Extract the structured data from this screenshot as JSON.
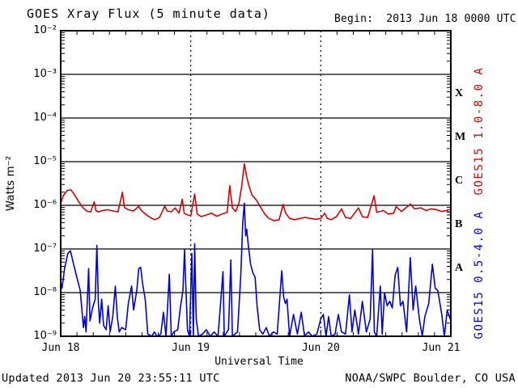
{
  "header": {
    "title": "GOES Xray Flux (5 minute data)",
    "begin_label": "Begin:  2013 Jun 18 0000 UTC"
  },
  "footer": {
    "updated": "Updated 2013 Jun 20 23:55:11 UTC",
    "source": "NOAA/SWPC Boulder, CO USA"
  },
  "colors": {
    "background": "#ffffff",
    "axis": "#000000",
    "long_channel_red": "#dd0000",
    "short_channel_blue": "#0000dd"
  },
  "chart_data": {
    "type": "line",
    "title": "GOES Xray Flux (5 minute data)",
    "xlabel": "Universal Time",
    "ylabel_display": "Watts m⁻²",
    "x_axis": {
      "tick_labels": [
        "Jun 18",
        "Jun 19",
        "Jun 20",
        "Jun 21"
      ],
      "range_days": [
        0,
        3
      ],
      "day_gridlines": [
        1,
        2
      ],
      "minor_ticks_per_day": 8
    },
    "y_axis": {
      "scale": "log",
      "tick_labels": [
        "10⁻²",
        "10⁻³",
        "10⁻⁴",
        "10⁻⁵",
        "10⁻⁶",
        "10⁻⁷",
        "10⁻⁸",
        "10⁻⁹"
      ],
      "tick_exponents": [
        -2,
        -3,
        -4,
        -5,
        -6,
        -7,
        -8,
        -9
      ],
      "gridline_exponents": [
        -3,
        -4,
        -5,
        -6,
        -7,
        -8
      ],
      "range_exponents": [
        -9,
        -2
      ]
    },
    "flux_classes": [
      {
        "label": "X",
        "log_center": -3.5
      },
      {
        "label": "M",
        "log_center": -4.5
      },
      {
        "label": "C",
        "log_center": -5.5
      },
      {
        "label": "B",
        "log_center": -6.5
      },
      {
        "label": "A",
        "log_center": -7.5
      }
    ],
    "grid": {
      "horizontal": "solid",
      "day_vertical": "dashed"
    },
    "legend_position": "right-rotated",
    "series": [
      {
        "name": "GOES15 1.0-8.0 A",
        "satellite": "GOES15",
        "wavelength": "1.0-8.0 A",
        "color": "#dd0000",
        "points": [
          [
            0.0,
            -5.95
          ],
          [
            0.02,
            -5.78
          ],
          [
            0.05,
            -5.66
          ],
          [
            0.08,
            -5.65
          ],
          [
            0.11,
            -5.78
          ],
          [
            0.14,
            -5.92
          ],
          [
            0.17,
            -6.05
          ],
          [
            0.2,
            -6.13
          ],
          [
            0.23,
            -6.15
          ],
          [
            0.258,
            -5.92
          ],
          [
            0.27,
            -6.12
          ],
          [
            0.29,
            -6.15
          ],
          [
            0.32,
            -6.12
          ],
          [
            0.36,
            -6.1
          ],
          [
            0.4,
            -6.13
          ],
          [
            0.44,
            -6.15
          ],
          [
            0.475,
            -5.7
          ],
          [
            0.49,
            -6.05
          ],
          [
            0.52,
            -6.1
          ],
          [
            0.56,
            -6.13
          ],
          [
            0.6,
            -6.02
          ],
          [
            0.62,
            -6.12
          ],
          [
            0.66,
            -6.22
          ],
          [
            0.7,
            -6.3
          ],
          [
            0.725,
            -6.33
          ],
          [
            0.76,
            -6.28
          ],
          [
            0.8,
            -6.02
          ],
          [
            0.82,
            -6.13
          ],
          [
            0.85,
            -6.15
          ],
          [
            0.88,
            -6.06
          ],
          [
            0.91,
            -6.18
          ],
          [
            0.935,
            -5.86
          ],
          [
            0.95,
            -6.18
          ],
          [
            0.975,
            -6.22
          ],
          [
            1.0,
            -6.24
          ],
          [
            1.03,
            -5.74
          ],
          [
            1.05,
            -6.2
          ],
          [
            1.08,
            -6.26
          ],
          [
            1.12,
            -6.22
          ],
          [
            1.16,
            -6.18
          ],
          [
            1.2,
            -6.25
          ],
          [
            1.24,
            -6.2
          ],
          [
            1.28,
            -6.16
          ],
          [
            1.3,
            -5.55
          ],
          [
            1.32,
            -6.06
          ],
          [
            1.345,
            -6.14
          ],
          [
            1.37,
            -5.96
          ],
          [
            1.39,
            -5.6
          ],
          [
            1.412,
            -5.05
          ],
          [
            1.43,
            -5.35
          ],
          [
            1.45,
            -5.58
          ],
          [
            1.47,
            -5.76
          ],
          [
            1.49,
            -5.83
          ],
          [
            1.51,
            -5.9
          ],
          [
            1.54,
            -6.06
          ],
          [
            1.57,
            -6.2
          ],
          [
            1.6,
            -6.3
          ],
          [
            1.64,
            -6.35
          ],
          [
            1.68,
            -6.33
          ],
          [
            1.71,
            -5.98
          ],
          [
            1.73,
            -6.18
          ],
          [
            1.76,
            -6.3
          ],
          [
            1.8,
            -6.33
          ],
          [
            1.84,
            -6.3
          ],
          [
            1.88,
            -6.28
          ],
          [
            1.92,
            -6.3
          ],
          [
            1.96,
            -6.32
          ],
          [
            2.0,
            -6.3
          ],
          [
            2.03,
            -6.18
          ],
          [
            2.05,
            -6.3
          ],
          [
            2.08,
            -6.33
          ],
          [
            2.12,
            -6.26
          ],
          [
            2.16,
            -6.08
          ],
          [
            2.19,
            -6.28
          ],
          [
            2.23,
            -6.3
          ],
          [
            2.29,
            -6.06
          ],
          [
            2.32,
            -6.26
          ],
          [
            2.36,
            -6.28
          ],
          [
            2.41,
            -5.78
          ],
          [
            2.43,
            -6.16
          ],
          [
            2.48,
            -6.12
          ],
          [
            2.52,
            -6.2
          ],
          [
            2.56,
            -6.18
          ],
          [
            2.58,
            -6.03
          ],
          [
            2.62,
            -6.14
          ],
          [
            2.69,
            -5.97
          ],
          [
            2.72,
            -6.08
          ],
          [
            2.77,
            -6.06
          ],
          [
            2.81,
            -6.12
          ],
          [
            2.85,
            -6.08
          ],
          [
            2.89,
            -6.1
          ],
          [
            2.93,
            -6.14
          ],
          [
            2.97,
            -6.12
          ],
          [
            3.0,
            -6.18
          ]
        ]
      },
      {
        "name": "GOES15 0.5-4.0 A",
        "satellite": "GOES15",
        "wavelength": "0.5-4.0 A",
        "color": "#0000dd",
        "points": [
          [
            0.0,
            -7.75
          ],
          [
            0.01,
            -7.9
          ],
          [
            0.03,
            -7.45
          ],
          [
            0.055,
            -7.1
          ],
          [
            0.075,
            -7.04
          ],
          [
            0.095,
            -7.3
          ],
          [
            0.12,
            -7.6
          ],
          [
            0.15,
            -7.95
          ],
          [
            0.175,
            -8.8
          ],
          [
            0.185,
            -8.55
          ],
          [
            0.195,
            -8.9
          ],
          [
            0.215,
            -7.45
          ],
          [
            0.225,
            -8.65
          ],
          [
            0.245,
            -8.35
          ],
          [
            0.265,
            -8.15
          ],
          [
            0.278,
            -6.92
          ],
          [
            0.29,
            -8.25
          ],
          [
            0.3,
            -8.7
          ],
          [
            0.315,
            -8.15
          ],
          [
            0.33,
            -8.75
          ],
          [
            0.35,
            -8.85
          ],
          [
            0.365,
            -8.3
          ],
          [
            0.38,
            -8.9
          ],
          [
            0.4,
            -8.55
          ],
          [
            0.42,
            -7.85
          ],
          [
            0.435,
            -8.55
          ],
          [
            0.45,
            -8.9
          ],
          [
            0.47,
            -8.8
          ],
          [
            0.5,
            -8.85
          ],
          [
            0.52,
            -8.25
          ],
          [
            0.545,
            -7.85
          ],
          [
            0.56,
            -8.4
          ],
          [
            0.585,
            -7.95
          ],
          [
            0.6,
            -7.45
          ],
          [
            0.615,
            -7.42
          ],
          [
            0.63,
            -7.8
          ],
          [
            0.65,
            -8.15
          ],
          [
            0.67,
            -8.95
          ],
          [
            0.7,
            -9.0
          ],
          [
            0.72,
            -8.9
          ],
          [
            0.74,
            -9.0
          ],
          [
            0.77,
            -8.95
          ],
          [
            0.79,
            -8.45
          ],
          [
            0.81,
            -9.0
          ],
          [
            0.835,
            -7.58
          ],
          [
            0.85,
            -9.0
          ],
          [
            0.87,
            -8.9
          ],
          [
            0.9,
            -8.85
          ],
          [
            0.92,
            -8.35
          ],
          [
            0.94,
            -7.95
          ],
          [
            0.952,
            -7.02
          ],
          [
            0.963,
            -7.9
          ],
          [
            0.975,
            -8.85
          ],
          [
            0.99,
            -9.0
          ],
          [
            1.008,
            -7.1
          ],
          [
            1.02,
            -9.0
          ],
          [
            1.03,
            -6.88
          ],
          [
            1.042,
            -8.6
          ],
          [
            1.06,
            -9.0
          ],
          [
            1.09,
            -8.95
          ],
          [
            1.12,
            -8.85
          ],
          [
            1.15,
            -9.0
          ],
          [
            1.18,
            -8.9
          ],
          [
            1.21,
            -9.0
          ],
          [
            1.248,
            -7.52
          ],
          [
            1.258,
            -9.0
          ],
          [
            1.29,
            -8.85
          ],
          [
            1.308,
            -7.25
          ],
          [
            1.32,
            -9.0
          ],
          [
            1.36,
            -8.9
          ],
          [
            1.385,
            -7.6
          ],
          [
            1.4,
            -6.4
          ],
          [
            1.412,
            -5.95
          ],
          [
            1.422,
            -6.7
          ],
          [
            1.43,
            -6.55
          ],
          [
            1.442,
            -6.9
          ],
          [
            1.46,
            -7.35
          ],
          [
            1.478,
            -7.55
          ],
          [
            1.495,
            -7.65
          ],
          [
            1.51,
            -8.3
          ],
          [
            1.53,
            -8.85
          ],
          [
            1.555,
            -8.95
          ],
          [
            1.58,
            -8.8
          ],
          [
            1.605,
            -9.0
          ],
          [
            1.635,
            -8.9
          ],
          [
            1.665,
            -8.95
          ],
          [
            1.7,
            -7.5
          ],
          [
            1.715,
            -8.1
          ],
          [
            1.728,
            -8.25
          ],
          [
            1.74,
            -8.15
          ],
          [
            1.76,
            -9.0
          ],
          [
            1.79,
            -8.5
          ],
          [
            1.82,
            -8.95
          ],
          [
            1.85,
            -8.45
          ],
          [
            1.875,
            -9.0
          ],
          [
            1.905,
            -8.9
          ],
          [
            1.935,
            -9.0
          ],
          [
            1.97,
            -8.95
          ],
          [
            2.0,
            -8.6
          ],
          [
            2.02,
            -8.5
          ],
          [
            2.04,
            -9.0
          ],
          [
            2.06,
            -8.55
          ],
          [
            2.08,
            -9.0
          ],
          [
            2.11,
            -8.95
          ],
          [
            2.135,
            -8.5
          ],
          [
            2.16,
            -8.9
          ],
          [
            2.19,
            -8.95
          ],
          [
            2.22,
            -8.05
          ],
          [
            2.24,
            -8.9
          ],
          [
            2.262,
            -8.4
          ],
          [
            2.29,
            -8.95
          ],
          [
            2.32,
            -8.2
          ],
          [
            2.35,
            -8.9
          ],
          [
            2.38,
            -8.6
          ],
          [
            2.398,
            -7.02
          ],
          [
            2.412,
            -8.9
          ],
          [
            2.43,
            -9.0
          ],
          [
            2.458,
            -7.85
          ],
          [
            2.472,
            -8.95
          ],
          [
            2.49,
            -8.0
          ],
          [
            2.51,
            -8.3
          ],
          [
            2.53,
            -8.2
          ],
          [
            2.55,
            -8.35
          ],
          [
            2.572,
            -7.6
          ],
          [
            2.592,
            -7.42
          ],
          [
            2.612,
            -8.3
          ],
          [
            2.632,
            -8.2
          ],
          [
            2.66,
            -8.9
          ],
          [
            2.688,
            -7.2
          ],
          [
            2.71,
            -8.4
          ],
          [
            2.73,
            -7.85
          ],
          [
            2.758,
            -8.6
          ],
          [
            2.78,
            -9.0
          ],
          [
            2.8,
            -8.55
          ],
          [
            2.83,
            -8.25
          ],
          [
            2.858,
            -7.35
          ],
          [
            2.88,
            -7.9
          ],
          [
            2.9,
            -7.95
          ],
          [
            2.93,
            -8.5
          ],
          [
            2.95,
            -9.0
          ],
          [
            2.972,
            -8.4
          ],
          [
            2.995,
            -8.6
          ]
        ]
      }
    ]
  }
}
